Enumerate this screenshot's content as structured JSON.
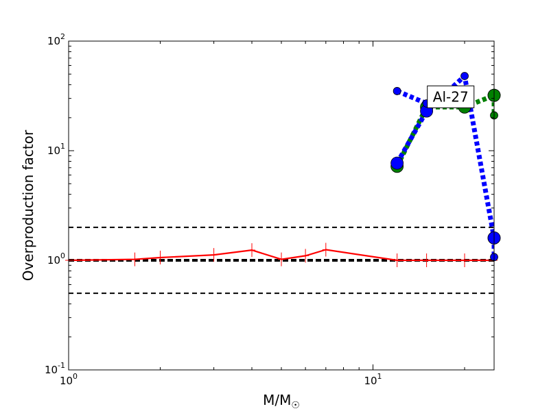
{
  "chart_data": {
    "type": "line",
    "xlabel": "M/M",
    "xlabel_sub": "☉",
    "ylabel": "Overproduction factor",
    "xscale": "log",
    "yscale": "log",
    "xlim": [
      1,
      25
    ],
    "ylim": [
      0.1,
      100
    ],
    "x_ticks": [
      {
        "value": 1,
        "base": "10",
        "exp": "0"
      },
      {
        "value": 10,
        "base": "10",
        "exp": "1"
      }
    ],
    "y_ticks": [
      {
        "value": 0.1,
        "base": "10",
        "exp": "-1"
      },
      {
        "value": 1,
        "base": "10",
        "exp": "0"
      },
      {
        "value": 10,
        "base": "10",
        "exp": "1"
      },
      {
        "value": 100,
        "base": "10",
        "exp": "2"
      }
    ],
    "annotation": {
      "text": "Al-27",
      "x": 18,
      "y": 31
    },
    "reference_lines": [
      {
        "y": 2.0,
        "style": "dashed"
      },
      {
        "y": 1.0,
        "style": "dashed-thick"
      },
      {
        "y": 0.5,
        "style": "dashed"
      }
    ],
    "series": [
      {
        "color": "#ff0000",
        "style": "solid",
        "x": [
          1.0,
          1.65,
          2.0,
          3.0,
          4.0,
          5.0,
          6.0,
          7.0,
          12.0,
          15.0,
          20.0,
          25.0
        ],
        "y": [
          1.0,
          1.02,
          1.06,
          1.12,
          1.24,
          1.02,
          1.1,
          1.25,
          1.0,
          1.0,
          1.0,
          1.0
        ]
      },
      {
        "color": "#008000",
        "style": "dotted-thick",
        "x": [
          12.0,
          15.0,
          20.0,
          25.0
        ],
        "y": [
          7.2,
          25.0,
          25.0,
          32.0
        ]
      },
      {
        "color": "#008000",
        "style": "dotted-thick",
        "x": [
          25.0,
          25.0
        ],
        "y": [
          32.0,
          21.0
        ]
      },
      {
        "color": "#0000ff",
        "style": "dotted-thick",
        "x": [
          12.0,
          15.0,
          20.0,
          25.0
        ],
        "y": [
          7.7,
          23.0,
          48.0,
          1.6
        ]
      },
      {
        "color": "#0000ff",
        "style": "dotted-thick",
        "x": [
          12.0,
          15.0
        ],
        "y": [
          35.0,
          27.0
        ]
      },
      {
        "color": "#0000ff",
        "style": "dotted-thick",
        "x": [
          25.0,
          25.0
        ],
        "y": [
          1.6,
          1.07
        ]
      }
    ]
  }
}
